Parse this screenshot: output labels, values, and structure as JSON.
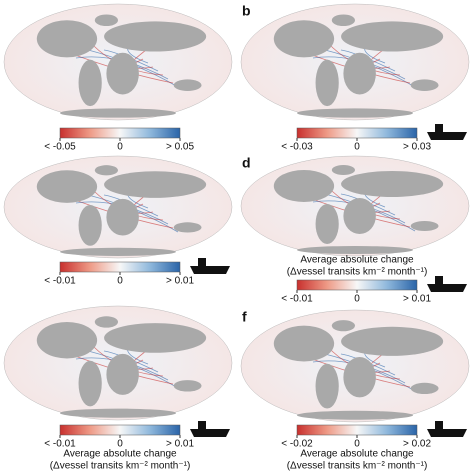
{
  "panels": [
    {
      "ticks": [
        "< -0.05",
        "0",
        "> 0.05"
      ]
    },
    {
      "label": "b",
      "ticks": [
        "< -0.03",
        "0",
        "> 0.03"
      ]
    },
    {
      "ticks": [
        "< -0.01",
        "0",
        "> 0.01"
      ]
    },
    {
      "label": "d",
      "ticks": [
        "< -0.01",
        "0",
        "> 0.01"
      ],
      "caption": [
        "Average absolute change",
        "(Δvessel transits km⁻² month⁻¹)"
      ]
    },
    {
      "ticks": [
        "< -0.01",
        "0",
        "> 0.01"
      ],
      "caption": [
        "Average absolute change",
        "(Δvessel transits km⁻² month⁻¹)"
      ]
    },
    {
      "label": "f",
      "ticks": [
        "< -0.02",
        "0",
        "> 0.02"
      ],
      "caption": [
        "Average absolute change",
        "(Δvessel transits km⁻² month⁻¹)"
      ]
    }
  ]
}
